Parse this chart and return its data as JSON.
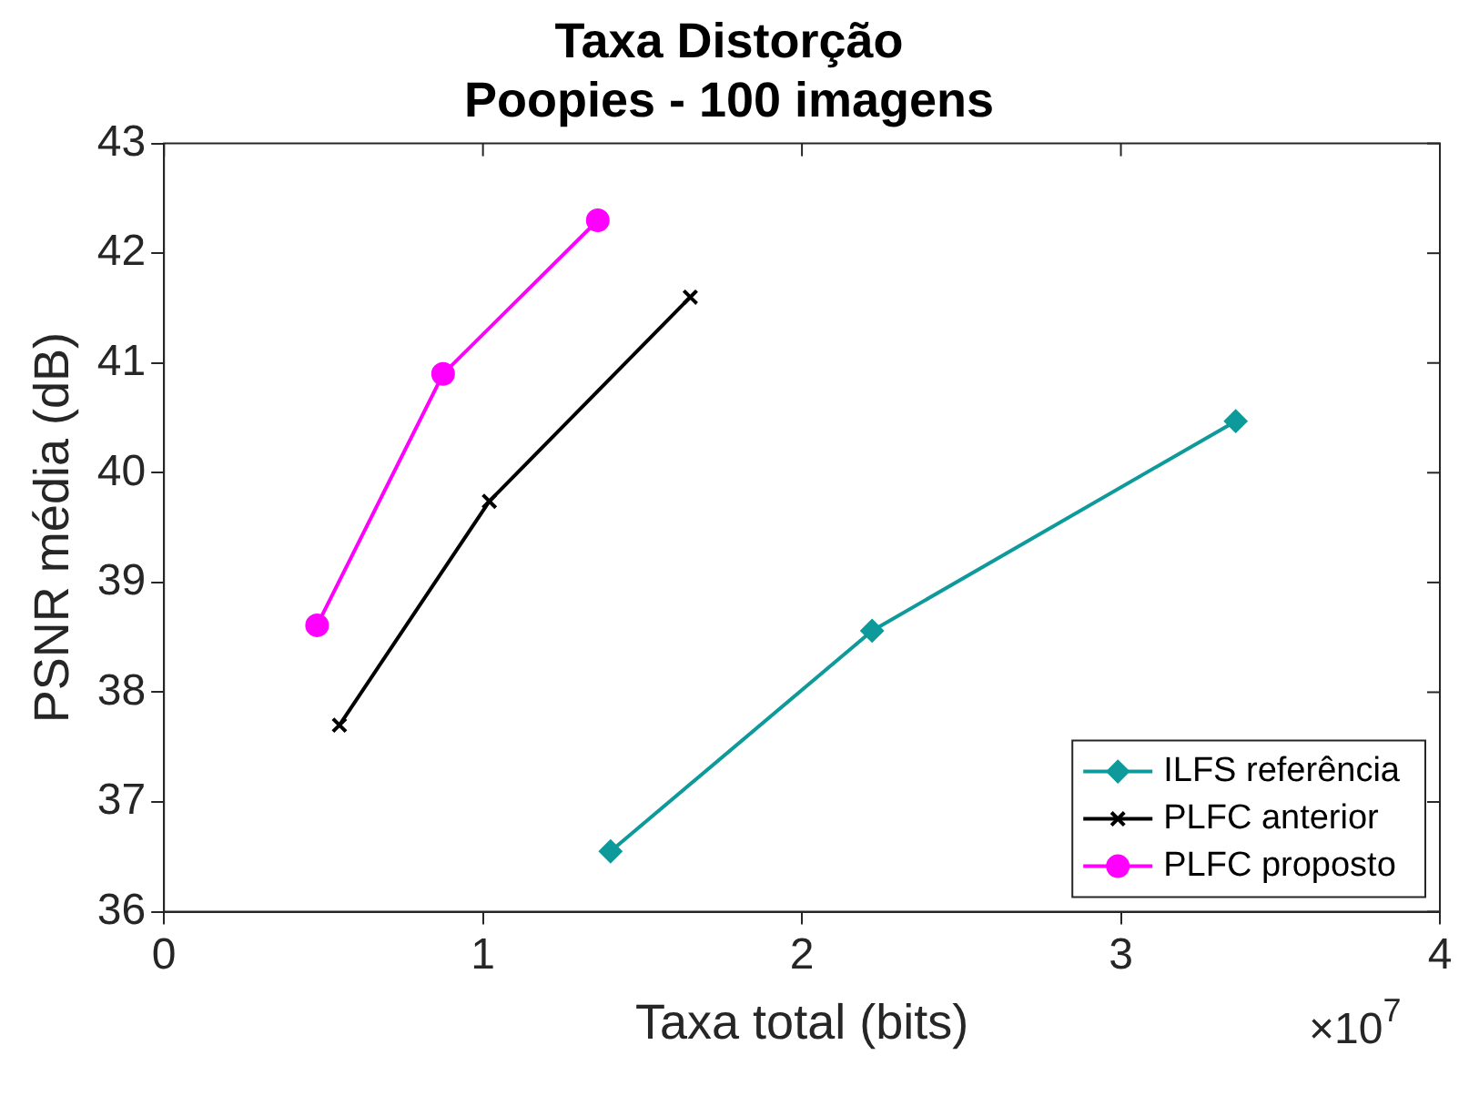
{
  "chart_data": {
    "type": "line",
    "title": "Taxa Distorção\nPoopies - 100 imagens",
    "xlabel": "Taxa total (bits)",
    "ylabel": "PSNR média (dB)",
    "xlim": [
      0,
      4
    ],
    "xticks": [
      0,
      1,
      2,
      3,
      4
    ],
    "ylim": [
      36,
      43
    ],
    "yticks": [
      36,
      37,
      38,
      39,
      40,
      41,
      42,
      43
    ],
    "grid": false,
    "legend": "bottom right",
    "annotations": [
      "×10$^{7}$"
    ],
    "series": [
      {
        "name": "ILFS referência",
        "color": "#0e9a9a",
        "marker": "diamond",
        "x": [
          1.4,
          2.22,
          3.36
        ],
        "values": [
          36.55,
          38.56,
          40.47
        ]
      },
      {
        "name": "PLFC anterior",
        "color": "#000000",
        "marker": "cross",
        "x": [
          0.55,
          1.02,
          1.65
        ],
        "values": [
          37.7,
          39.74,
          41.6
        ]
      },
      {
        "name": "PLFC proposto",
        "color": "#ff00ff",
        "marker": "circle",
        "x": [
          0.48,
          0.875,
          1.36
        ],
        "values": [
          38.61,
          40.9,
          42.3
        ]
      }
    ]
  }
}
